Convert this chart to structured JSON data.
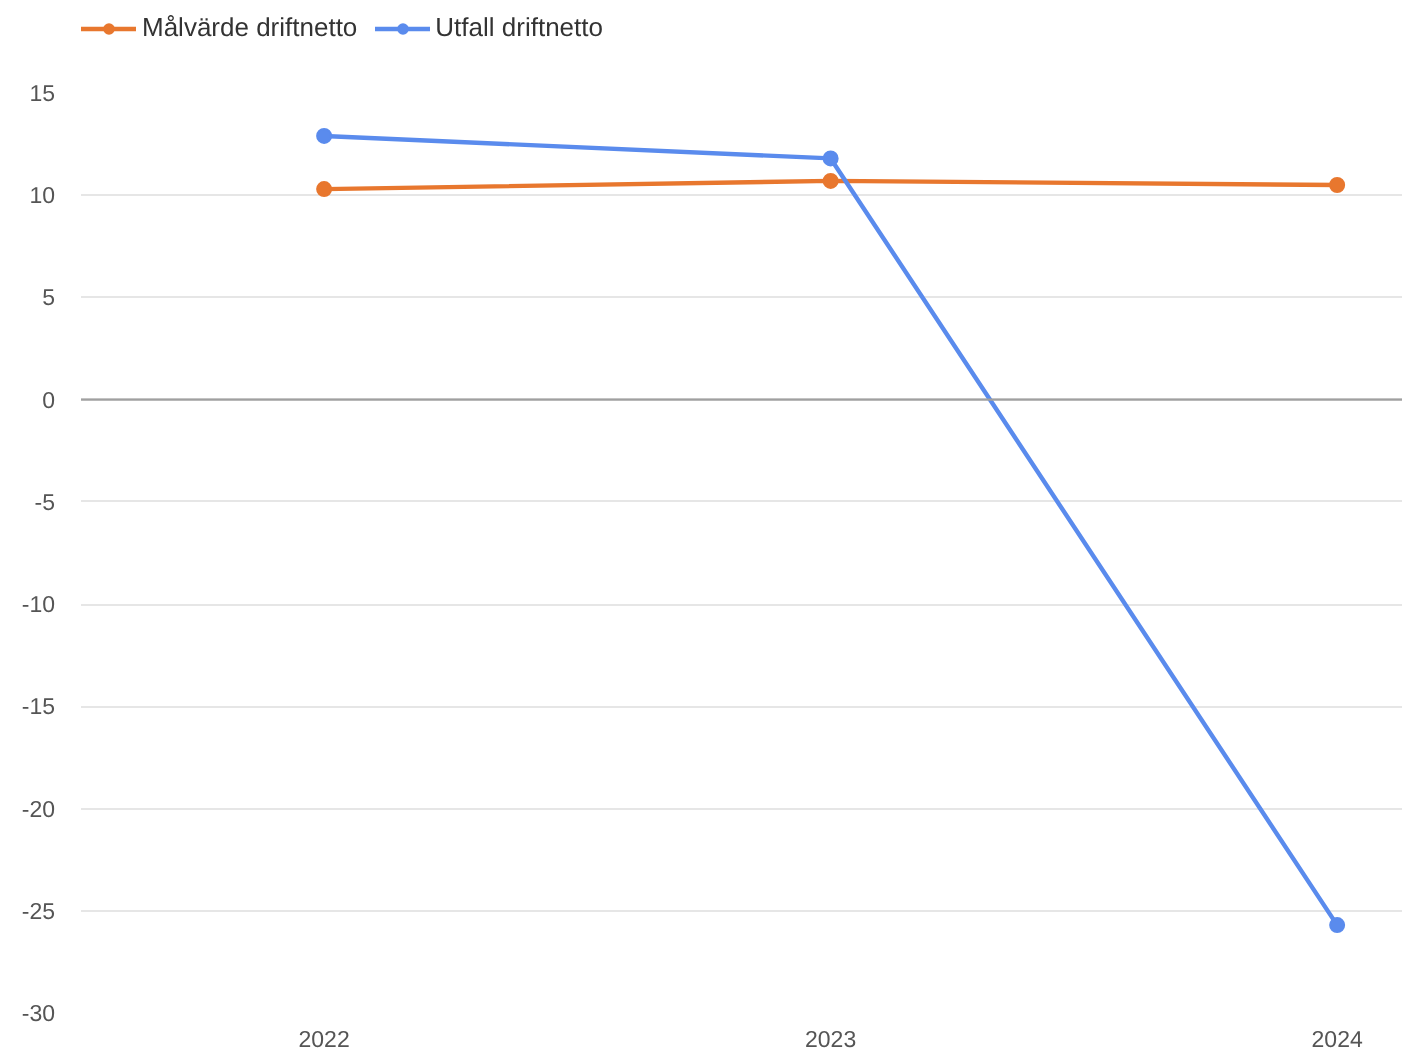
{
  "chart_data": {
    "type": "line",
    "categories": [
      "2022",
      "2023",
      "2024"
    ],
    "series": [
      {
        "name": "Målvärde driftnetto",
        "color": "#e8772e",
        "values": [
          10.3,
          10.7,
          10.5
        ]
      },
      {
        "name": "Utfall driftnetto",
        "color": "#5a8bed",
        "values": [
          12.9,
          11.8,
          -25.7
        ]
      }
    ],
    "ylim": [
      -30,
      15
    ],
    "yticks": [
      -30,
      -25,
      -20,
      -15,
      -10,
      -5,
      0,
      5,
      10,
      15
    ],
    "grid": "y",
    "legend": "top left",
    "marker": "circle",
    "line_style": "solid",
    "ref_lines": [
      {
        "axis": "y",
        "value": 0,
        "color": "#a0a0a0"
      }
    ]
  }
}
